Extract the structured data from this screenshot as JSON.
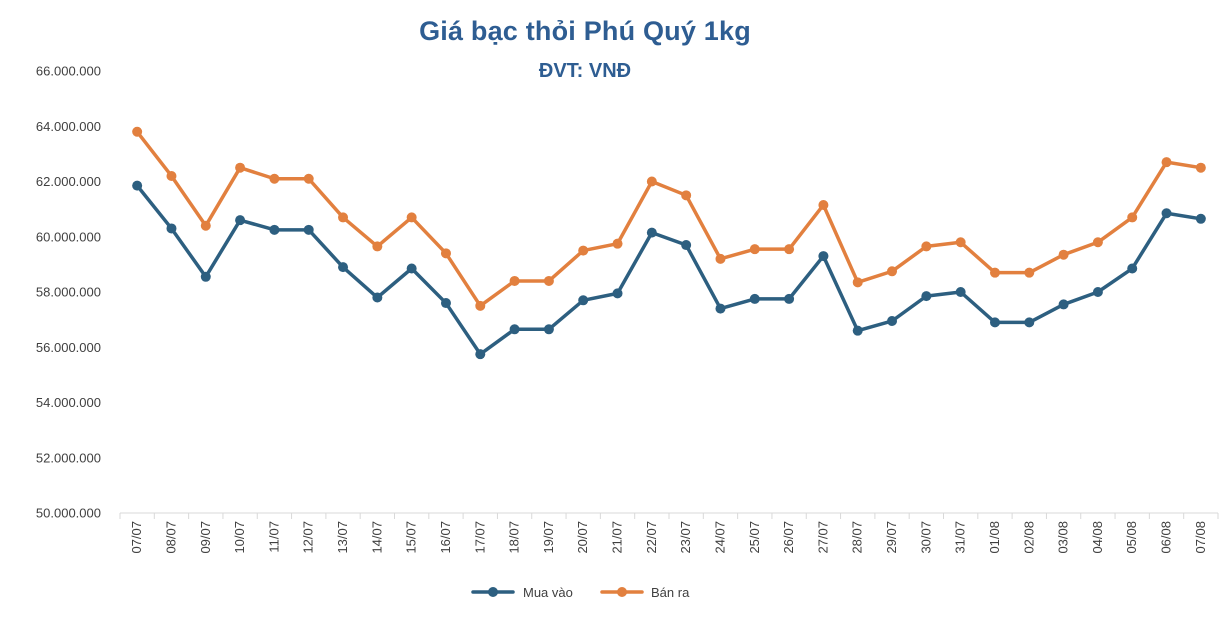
{
  "title": "Giá bạc thỏi Phú Quý 1kg",
  "subtitle": "ĐVT: VNĐ",
  "colors": {
    "title": "#2e5d92",
    "mua_vao": "#2d5f80",
    "ban_ra": "#e2803f",
    "axis": "#d9d9d9",
    "text": "#404040"
  },
  "chart_data": {
    "type": "line",
    "title": "Giá bạc thỏi Phú Quý 1kg",
    "subtitle": "ĐVT: VNĐ",
    "xlabel": "",
    "ylabel": "",
    "ylim": [
      50000000,
      66000000
    ],
    "yticks": [
      "50.000.000",
      "52.000.000",
      "54.000.000",
      "56.000.000",
      "58.000.000",
      "60.000.000",
      "62.000.000",
      "64.000.000",
      "66.000.000"
    ],
    "ytick_values": [
      50000000,
      52000000,
      54000000,
      56000000,
      58000000,
      60000000,
      62000000,
      64000000,
      66000000
    ],
    "grid": false,
    "legend_position": "bottom",
    "categories": [
      "07/07",
      "08/07",
      "09/07",
      "10/07",
      "11/07",
      "12/07",
      "13/07",
      "14/07",
      "15/07",
      "16/07",
      "17/07",
      "18/07",
      "19/07",
      "20/07",
      "21/07",
      "22/07",
      "23/07",
      "24/07",
      "25/07",
      "26/07",
      "27/07",
      "28/07",
      "29/07",
      "30/07",
      "31/07",
      "01/08",
      "02/08",
      "03/08",
      "04/08",
      "05/08",
      "06/08",
      "07/08"
    ],
    "series": [
      {
        "name": "Mua vào",
        "color": "#2d5f80",
        "values": [
          61850000,
          60300000,
          58550000,
          60600000,
          60250000,
          60250000,
          58900000,
          57800000,
          58850000,
          57600000,
          55750000,
          56650000,
          56650000,
          57700000,
          57950000,
          60150000,
          59700000,
          57400000,
          57750000,
          57750000,
          59300000,
          56600000,
          56950000,
          57850000,
          58000000,
          56900000,
          56900000,
          57550000,
          58000000,
          58850000,
          60850000,
          60650000
        ]
      },
      {
        "name": "Bán ra",
        "color": "#e2803f",
        "values": [
          63800000,
          62200000,
          60400000,
          62500000,
          62100000,
          62100000,
          60700000,
          59650000,
          60700000,
          59400000,
          57500000,
          58400000,
          58400000,
          59500000,
          59750000,
          62000000,
          61500000,
          59200000,
          59550000,
          59550000,
          61150000,
          58350000,
          58750000,
          59650000,
          59800000,
          58700000,
          58700000,
          59350000,
          59800000,
          60700000,
          62700000,
          62500000
        ]
      }
    ]
  }
}
